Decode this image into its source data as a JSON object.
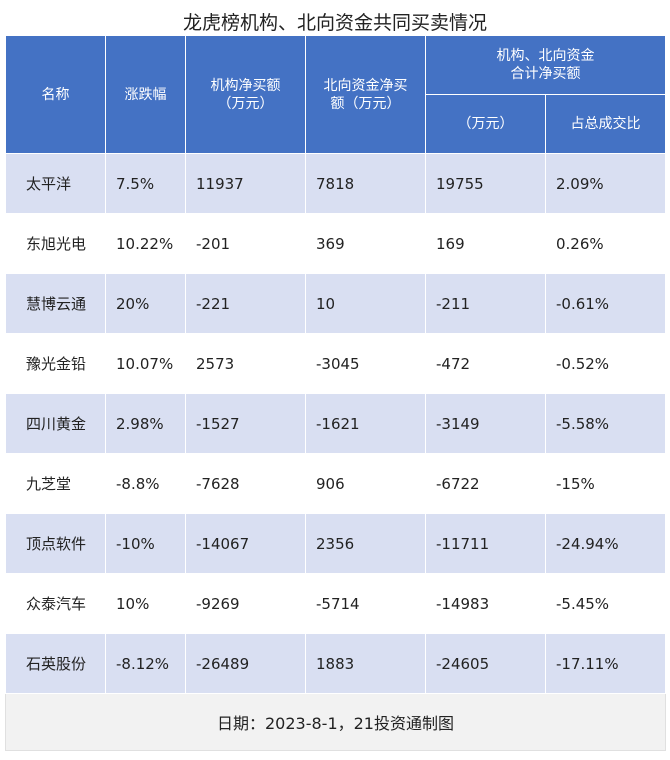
{
  "title": "龙虎榜机构、北向资金共同买卖情况",
  "chart_data": {
    "type": "table",
    "columns": {
      "name": "名称",
      "change": "涨跌幅",
      "inst": "机构净买额（万元）",
      "north": "北向资金净买额（万元）",
      "group": "机构、北向资金合计净买额",
      "total": "（万元）",
      "ratio": "占总成交比"
    },
    "column_lines": {
      "inst": [
        "机构净买额",
        "（万元）"
      ],
      "north": [
        "北向资金净买",
        "额（万元）"
      ],
      "group": [
        "机构、北向资金",
        "合计净买额"
      ]
    },
    "rows": [
      {
        "name": "太平洋",
        "change": "7.5%",
        "inst": "11937",
        "north": "7818",
        "total": "19755",
        "ratio": "2.09%"
      },
      {
        "name": "东旭光电",
        "change": "10.22%",
        "inst": "-201",
        "north": "369",
        "total": "169",
        "ratio": "0.26%"
      },
      {
        "name": "慧博云通",
        "change": "20%",
        "inst": "-221",
        "north": "10",
        "total": "-211",
        "ratio": "-0.61%"
      },
      {
        "name": "豫光金铅",
        "change": "10.07%",
        "inst": "2573",
        "north": "-3045",
        "total": "-472",
        "ratio": "-0.52%"
      },
      {
        "name": "四川黄金",
        "change": "2.98%",
        "inst": "-1527",
        "north": "-1621",
        "total": "-3149",
        "ratio": "-5.58%"
      },
      {
        "name": "九芝堂",
        "change": "-8.8%",
        "inst": "-7628",
        "north": "906",
        "total": "-6722",
        "ratio": "-15%"
      },
      {
        "name": "顶点软件",
        "change": "-10%",
        "inst": "-14067",
        "north": "2356",
        "total": "-11711",
        "ratio": "-24.94%"
      },
      {
        "name": "众泰汽车",
        "change": "10%",
        "inst": "-9269",
        "north": "-5714",
        "total": "-14983",
        "ratio": "-5.45%"
      },
      {
        "name": "石英股份",
        "change": "-8.12%",
        "inst": "-26489",
        "north": "1883",
        "total": "-24605",
        "ratio": "-17.11%"
      }
    ]
  },
  "footer": "日期：2023-8-1，21投资通制图",
  "colors": {
    "header": "#4472c4",
    "band": "#d9dff2",
    "footer_bg": "#f2f2f2"
  }
}
